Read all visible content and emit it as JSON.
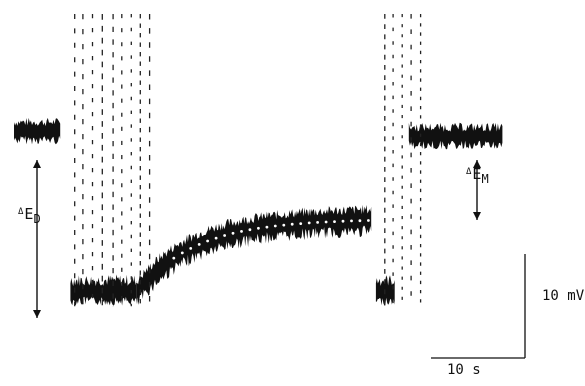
{
  "chart_data": {
    "type": "line",
    "description_units": {
      "time": "s",
      "potential": "mV"
    },
    "labels": {
      "delta_symbol": "Δ",
      "ed_main": "E",
      "ed_sub": "D",
      "em_main": "E",
      "em_sub": "M"
    },
    "scale_bars": {
      "vertical_label": "10 mV",
      "vertical_value_mV": 10,
      "horizontal_label": "10 s",
      "horizontal_value_s": 10
    },
    "trace": {
      "baseline_mV": 0,
      "depolarized_mV": -15.5,
      "recovery_plateau_mV": -10,
      "segments": [
        {
          "t_start": 0,
          "t_end": 5,
          "level_mV": 0
        },
        {
          "t_start": 6,
          "t_end": 13,
          "level_mV": -15.5
        },
        {
          "t_start": 13,
          "t_end": 38,
          "level_mV_start": -15.5,
          "level_mV_end": -8.5
        },
        {
          "t_start": 38.5,
          "t_end": 40.5,
          "level_mV": -15.5
        },
        {
          "t_start": 42,
          "t_end": 52,
          "level_mV": -0.5
        }
      ]
    }
  }
}
